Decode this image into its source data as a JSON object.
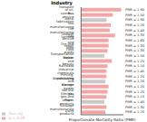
{
  "chart_data": {
    "type": "bar",
    "orientation": "horizontal",
    "stacked": true,
    "title": "Industry",
    "x_label": "Proportionate Mortality Ratio (PMR)",
    "categories": [
      "Transport of oil, comm...",
      "Bus service",
      "Metal fabrication",
      "Tool manufacturing",
      "Tire manufacturing",
      "Leather tanning",
      "Gas service and repair",
      "Tire and tube",
      "Food stores",
      "Transportation equip.",
      "Barber and beauty",
      "Railroads",
      "Industrial chemicals",
      "Printing, publishing",
      "Warehousing and storage",
      "Electric power",
      "Natural gas",
      "Electric, gas and other...",
      "Paper products",
      "Sausage manufacturing",
      "Dairy products"
    ],
    "series": [
      {
        "name": "Non-sig",
        "color": "#c8c8c8",
        "values": [
          null,
          null,
          1.2,
          null,
          null,
          null,
          null,
          null,
          null,
          1.1,
          null,
          null,
          null,
          null,
          1.15,
          null,
          null,
          null,
          1.1,
          null,
          null
        ]
      },
      {
        "name": "p < 0.05",
        "color": "#f4a6a6",
        "values": [
          1.9,
          1.5,
          null,
          1.4,
          1.35,
          1.6,
          1.3,
          1.3,
          1.25,
          null,
          1.45,
          1.25,
          1.2,
          1.2,
          null,
          1.3,
          1.25,
          1.2,
          null,
          1.2,
          1.15
        ]
      }
    ],
    "value_labels": [
      "PMR = 1.90",
      "PMR = 1.50",
      "PMR = 1.20",
      "PMR = 1.40",
      "PMR = 1.35",
      "PMR = 1.60",
      "PMR = 1.30",
      "PMR = 1.30",
      "PMR = 1.25",
      "PMR = 1.10",
      "PMR = 1.45",
      "PMR = 1.25",
      "PMR = 1.20",
      "PMR = 1.20",
      "PMR = 1.15",
      "PMR = 1.30",
      "PMR = 1.25",
      "PMR = 1.20",
      "PMR = 1.10",
      "PMR = 1.20",
      "PMR = 1.15"
    ],
    "xlim": [
      0,
      2
    ],
    "tick_labels": "y",
    "grid": false,
    "legend": "bottom left",
    "data_labels": true
  }
}
